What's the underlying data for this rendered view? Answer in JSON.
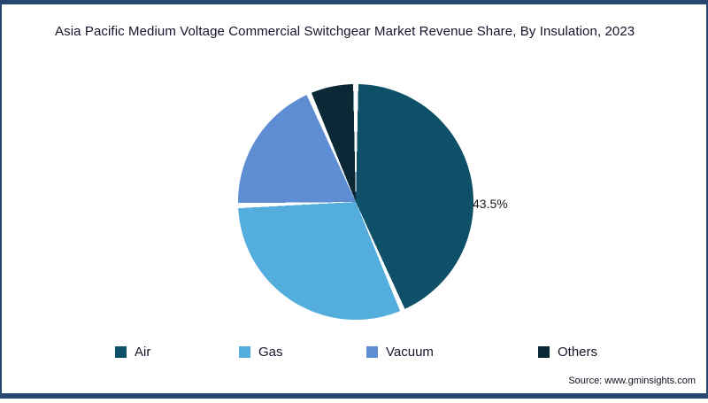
{
  "title": "Asia Pacific Medium Voltage Commercial Switchgear Market Revenue Share, By Insulation, 2023",
  "source": "Source: www.gminsights.com",
  "data_label": "43.5%",
  "chart_data": {
    "type": "pie",
    "title": "Asia Pacific Medium Voltage Commercial Switchgear Market Revenue Share, By Insulation, 2023",
    "categories": [
      "Air",
      "Gas",
      "Vacuum",
      "Others"
    ],
    "values": [
      43.5,
      31.0,
      19.0,
      6.5
    ],
    "colors": [
      "#0d5068",
      "#53aede",
      "#5f8dd3",
      "#0b2836"
    ],
    "labeled_slice": {
      "category": "Air",
      "label": "43.5%"
    },
    "start_angle_deg": 0,
    "direction": "clockwise",
    "legend_position": "bottom",
    "slice_separator_color": "#ffffff"
  },
  "legend": [
    {
      "label": "Air",
      "color": "#0d5068"
    },
    {
      "label": "Gas",
      "color": "#53aede"
    },
    {
      "label": "Vacuum",
      "color": "#5f8dd3"
    },
    {
      "label": "Others",
      "color": "#0b2836"
    }
  ]
}
